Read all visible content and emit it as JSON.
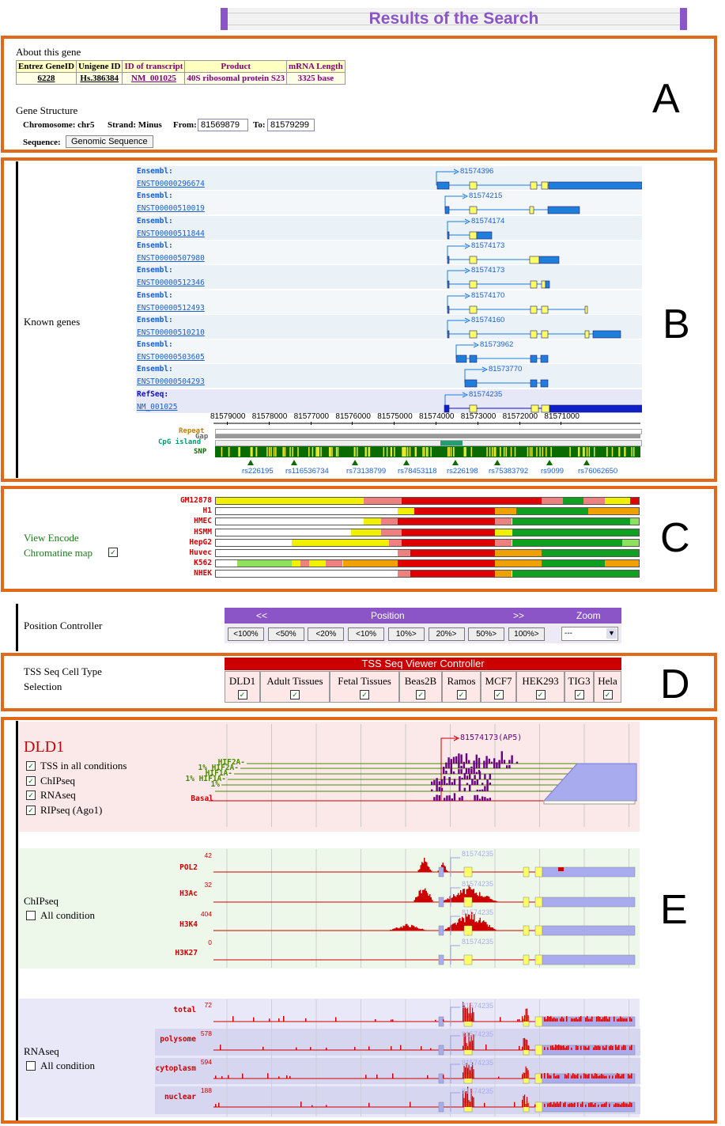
{
  "page_title": "Results of the Search",
  "panel_letters": [
    "A",
    "B",
    "C",
    "D",
    "E"
  ],
  "about": {
    "heading": "About this gene",
    "columns": [
      "Entrez GeneID",
      "Unigene ID",
      "ID of transcript",
      "Product",
      "mRNA Length"
    ],
    "values": [
      "6228",
      "Hs.386384",
      "NM_001025",
      "40S ribosomal protein S23",
      "3325 base"
    ]
  },
  "gene_structure": {
    "heading": "Gene Structure",
    "chromosome_label": "Chromosome: chr5",
    "strand_label": "Strand: Minus",
    "from_label": "From:",
    "from_value": "81569879",
    "to_label": "To:",
    "to_value": "81579299",
    "sequence_label": "Sequence:",
    "sequence_button": "Genomic Sequence"
  },
  "known_genes": {
    "label": "Known genes",
    "tracks": [
      {
        "source": "Ensembl:",
        "id": "ENST00000296674",
        "tss": "81574396"
      },
      {
        "source": "Ensembl:",
        "id": "ENST00000510019",
        "tss": "81574215"
      },
      {
        "source": "Ensembl:",
        "id": "ENST00000511844",
        "tss": "81574174"
      },
      {
        "source": "Ensembl:",
        "id": "ENST00000507980",
        "tss": "81574173"
      },
      {
        "source": "Ensembl:",
        "id": "ENST00000512346",
        "tss": "81574173"
      },
      {
        "source": "Ensembl:",
        "id": "ENST00000512493",
        "tss": "81574170"
      },
      {
        "source": "Ensembl:",
        "id": "ENST00000510210",
        "tss": "81574160"
      },
      {
        "source": "Ensembl:",
        "id": "ENST00000503605",
        "tss": "81573962"
      },
      {
        "source": "Ensembl:",
        "id": "ENST00000504293",
        "tss": "81573770"
      },
      {
        "source": "RefSeq:",
        "id": "NM_001025",
        "tss": "81574235"
      }
    ],
    "axis_ticks": [
      "81579000",
      "81578000",
      "81577000",
      "81576000",
      "81575000",
      "81574000",
      "81573000",
      "81572000",
      "81571000"
    ],
    "annotation_tracks": [
      "Repeat",
      "Gap",
      "CpG island",
      "SNP"
    ],
    "snps": [
      "rs226195",
      "rs116536734",
      "rs73138799",
      "rs78453118",
      "rs226198",
      "rs75383792",
      "rs9099",
      "rs76062650"
    ]
  },
  "encode": {
    "label_line1": "View Encode",
    "label_line2": "Chromatine map",
    "cell_lines": [
      "GM12878",
      "H1",
      "HMEC",
      "HSMM",
      "HepG2",
      "Huvec",
      "K562",
      "NHEK"
    ]
  },
  "position": {
    "label": "Position Controller",
    "header_left": "<<",
    "header_mid": "Position",
    "header_right": ">>",
    "header_zoom": "Zoom",
    "buttons": [
      "<100%",
      "<50%",
      "<20%",
      "<10%",
      "10%>",
      "20%>",
      "50%>",
      "100%>"
    ],
    "zoom_value": "---"
  },
  "tss_controller": {
    "label_line1": "TSS Seq Cell Type",
    "label_line2": "Selection",
    "title": "TSS Seq Viewer Controller",
    "cell_types": [
      "DLD1",
      "Adult Tissues",
      "Fetal Tissues",
      "Beas2B",
      "Ramos",
      "MCF7",
      "HEK293",
      "TIG3",
      "Hela"
    ]
  },
  "dld1": {
    "title": "DLD1",
    "options": [
      "TSS in all conditions",
      "ChIPseq",
      "RNAseq",
      "RIPseq (Ago1)"
    ],
    "tss_marker": "81574173(AP5)",
    "conditions": [
      "HIF2A-",
      "1% HIF2A-",
      "HIF1A-",
      "1% HIF1A-",
      "1%",
      "Basal"
    ]
  },
  "chipseq": {
    "title": "ChIPseq",
    "all_condition": "All condition",
    "tracks": [
      {
        "name": "POL2",
        "max": "42"
      },
      {
        "name": "H3Ac",
        "max": "32"
      },
      {
        "name": "H3K4",
        "max": "404"
      },
      {
        "name": "H3K27",
        "max": "0"
      }
    ],
    "tss": "81574235"
  },
  "rnaseq": {
    "title": "RNAseq",
    "all_condition": "All condition",
    "tracks": [
      {
        "name": "total",
        "max": "72"
      },
      {
        "name": "polysome",
        "max": "578"
      },
      {
        "name": "cytoplasm",
        "max": "594"
      },
      {
        "name": "nuclear",
        "max": "188"
      }
    ],
    "tss": "81574235"
  },
  "colors": {
    "orange": "#e06a1a",
    "purple": "#8b55c8",
    "gene_blue": "#1f7ddb",
    "exon_yellow": "#ffff66",
    "snp_green": "#0a6b00",
    "red": "#e00000"
  }
}
